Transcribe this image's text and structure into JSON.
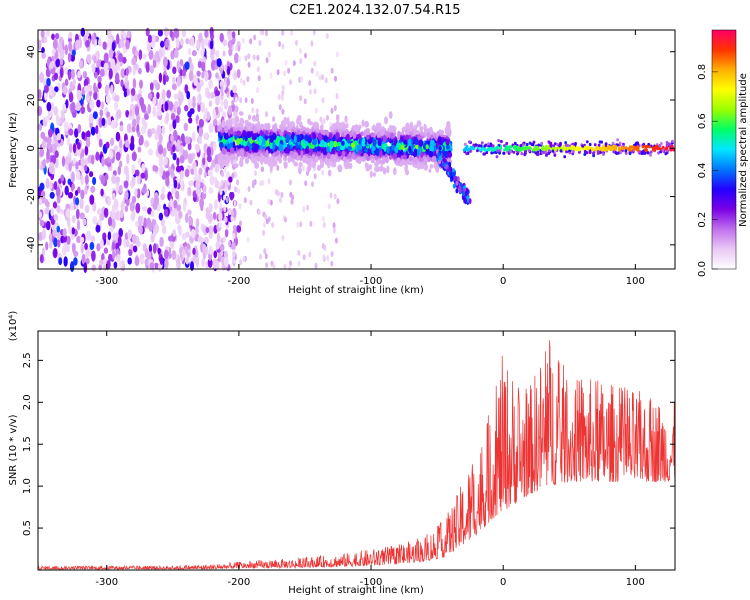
{
  "title": "C2E1.2024.132.07.54.R15",
  "chart_data": [
    {
      "type": "heatmap",
      "xlabel": "Height of straight line (km)",
      "ylabel": "Frequency (Hz)",
      "xlim": [
        -352,
        130
      ],
      "ylim": [
        -50,
        49
      ],
      "xticks": [
        -300,
        -200,
        -100,
        0,
        100
      ],
      "yticks": [
        -40,
        -20,
        0,
        20,
        40
      ],
      "colorbar": {
        "label": "Normalized spectral amplitude",
        "range": [
          0.0,
          0.97
        ],
        "ticks": [
          "0.0",
          "0.2",
          "0.4",
          "0.6",
          "0.8"
        ],
        "colormap": [
          "#ffffff",
          "#e9c8f5",
          "#c070ec",
          "#7a00e6",
          "#2200ff",
          "#0077ff",
          "#00e6ff",
          "#00ff66",
          "#99ff00",
          "#ffff00",
          "#ffb000",
          "#ff3300",
          "#ff0066"
        ]
      },
      "features": [
        {
          "segment": "diffuse noise",
          "x_range": [
            -352,
            -215
          ],
          "amplitude": 0.12
        },
        {
          "segment": "spectral band",
          "x_range": [
            -215,
            -40
          ],
          "freq_center": 3,
          "freq_width": 8,
          "amplitude": 0.4
        },
        {
          "segment": "descending tail",
          "x_range": [
            -50,
            -25
          ],
          "freq_from": -2,
          "freq_to": -22
        },
        {
          "segment": "narrow line",
          "x_range": [
            -30,
            130
          ],
          "freq_center": 0,
          "amplitude": 0.95
        }
      ]
    },
    {
      "type": "line",
      "xlabel": "Height of straight line (km)",
      "ylabel": "SNR (10 * v/v)",
      "y_multiplier": "(x10⁴)",
      "xlim": [
        -352,
        130
      ],
      "ylim": [
        0,
        2.85
      ],
      "xticks": [
        -300,
        -200,
        -100,
        0,
        100
      ],
      "yticks": [
        "0.5",
        "1.0",
        "1.5",
        "2.0",
        "2.5"
      ],
      "series_color": "#ee3333",
      "envelope": {
        "x": [
          -352,
          -300,
          -250,
          -220,
          -200,
          -150,
          -120,
          -100,
          -80,
          -60,
          -45,
          -35,
          -25,
          -15,
          -5,
          0,
          10,
          20,
          35,
          50,
          70,
          90,
          110,
          130
        ],
        "baseline": [
          0.01,
          0.01,
          0.01,
          0.01,
          0.02,
          0.03,
          0.04,
          0.05,
          0.07,
          0.1,
          0.15,
          0.25,
          0.35,
          0.5,
          0.65,
          0.7,
          0.8,
          0.9,
          1.0,
          1.05,
          1.05,
          1.05,
          1.05,
          1.05
        ],
        "peak": [
          0.05,
          0.05,
          0.05,
          0.07,
          0.1,
          0.15,
          0.2,
          0.25,
          0.3,
          0.4,
          0.6,
          0.9,
          1.3,
          1.6,
          2.3,
          2.6,
          2.3,
          2.2,
          2.85,
          2.3,
          2.3,
          2.2,
          2.1,
          2.0
        ]
      }
    }
  ]
}
